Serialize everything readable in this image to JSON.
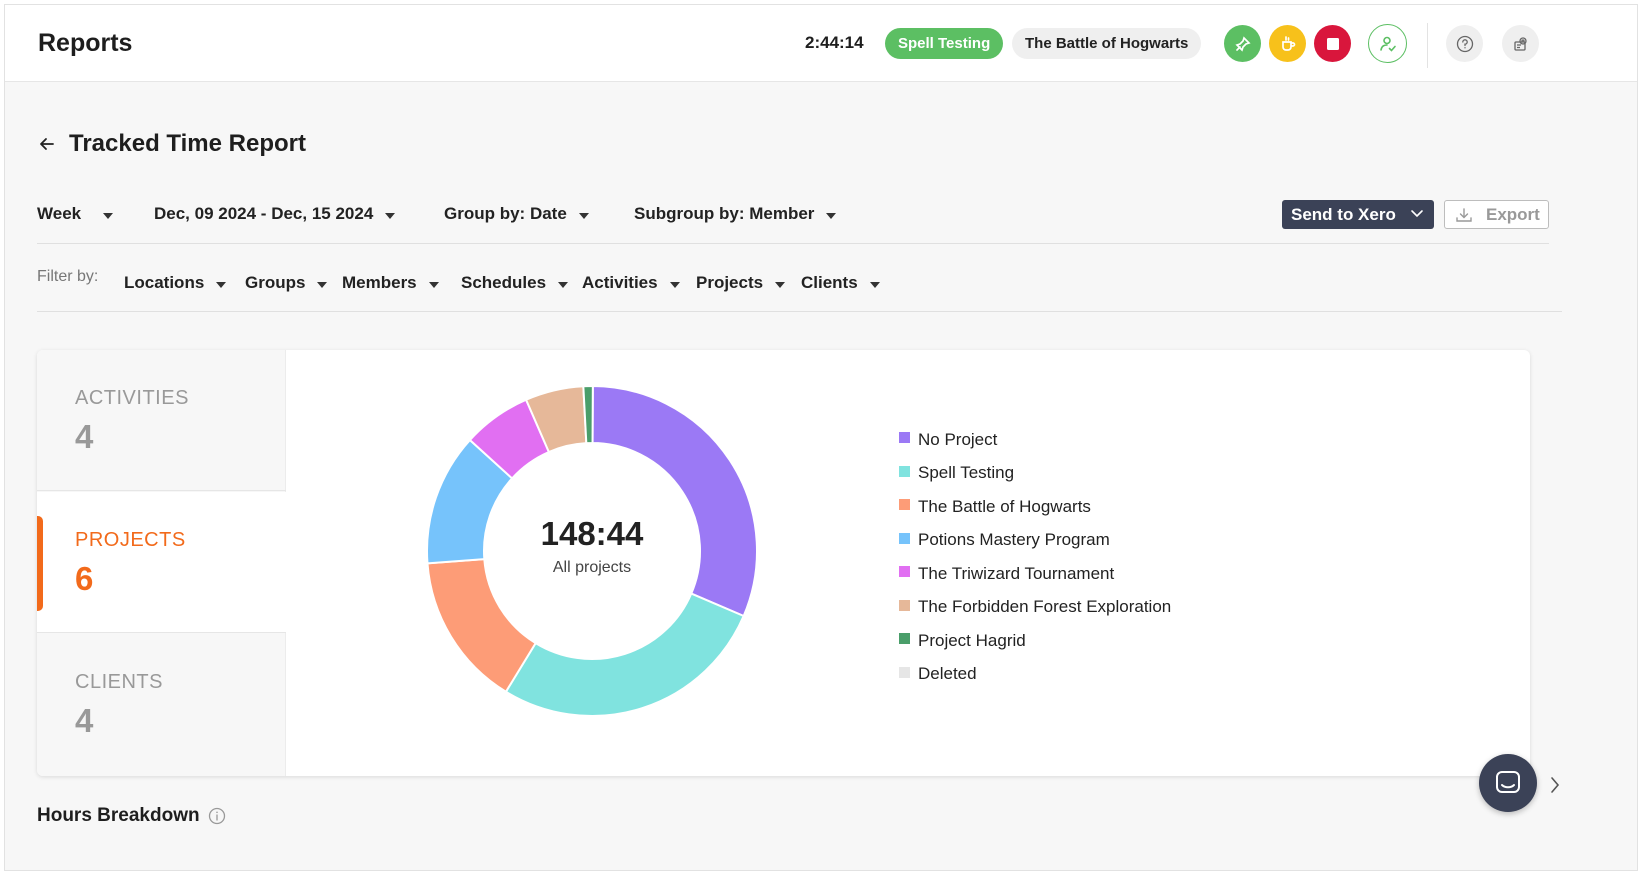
{
  "header": {
    "title": "Reports",
    "timer": "2:44:14",
    "active_activity": "Spell Testing",
    "active_project": "The Battle of Hogwarts",
    "accent_green": "#5cbf63",
    "icons": [
      "pin-off-icon",
      "coffee-icon",
      "stop-icon",
      "user-check-icon",
      "help-icon",
      "settings-icon"
    ]
  },
  "page": {
    "title": "Tracked Time Report"
  },
  "toolbar": {
    "period": "Week",
    "date_range": "Dec, 09 2024 - Dec, 15 2024",
    "group_by": "Group by: Date",
    "subgroup_by": "Subgroup by: Member",
    "send_label": "Send to Xero",
    "export_label": "Export"
  },
  "filters": {
    "label": "Filter by:",
    "items": [
      "Locations",
      "Groups",
      "Members",
      "Schedules",
      "Activities",
      "Projects",
      "Clients"
    ]
  },
  "summary_tabs": [
    {
      "label": "ACTIVITIES",
      "count": "4",
      "active": false
    },
    {
      "label": "PROJECTS",
      "count": "6",
      "active": true
    },
    {
      "label": "CLIENTS",
      "count": "4",
      "active": false
    }
  ],
  "accent_orange": "#f26a1b",
  "chart_data": {
    "type": "pie",
    "donut": true,
    "center_total": "148:44",
    "center_label": "All projects",
    "legend_position": "right",
    "categories": [
      "No Project",
      "Spell Testing",
      "The Battle of Hogwarts",
      "Potions Mastery Program",
      "The Triwizard Tournament",
      "The Forbidden Forest Exploration",
      "Project Hagrid",
      "Deleted"
    ],
    "values": [
      30.8,
      26.8,
      14.8,
      12.7,
      6.6,
      5.6,
      0.9,
      0
    ],
    "colors": [
      "#9b79f5",
      "#80e3df",
      "#fd9c77",
      "#76c3fb",
      "#e16ff2",
      "#e6b899",
      "#4a9e6a",
      "#e6e6e6"
    ]
  },
  "sections": {
    "hours_breakdown": "Hours Breakdown"
  }
}
